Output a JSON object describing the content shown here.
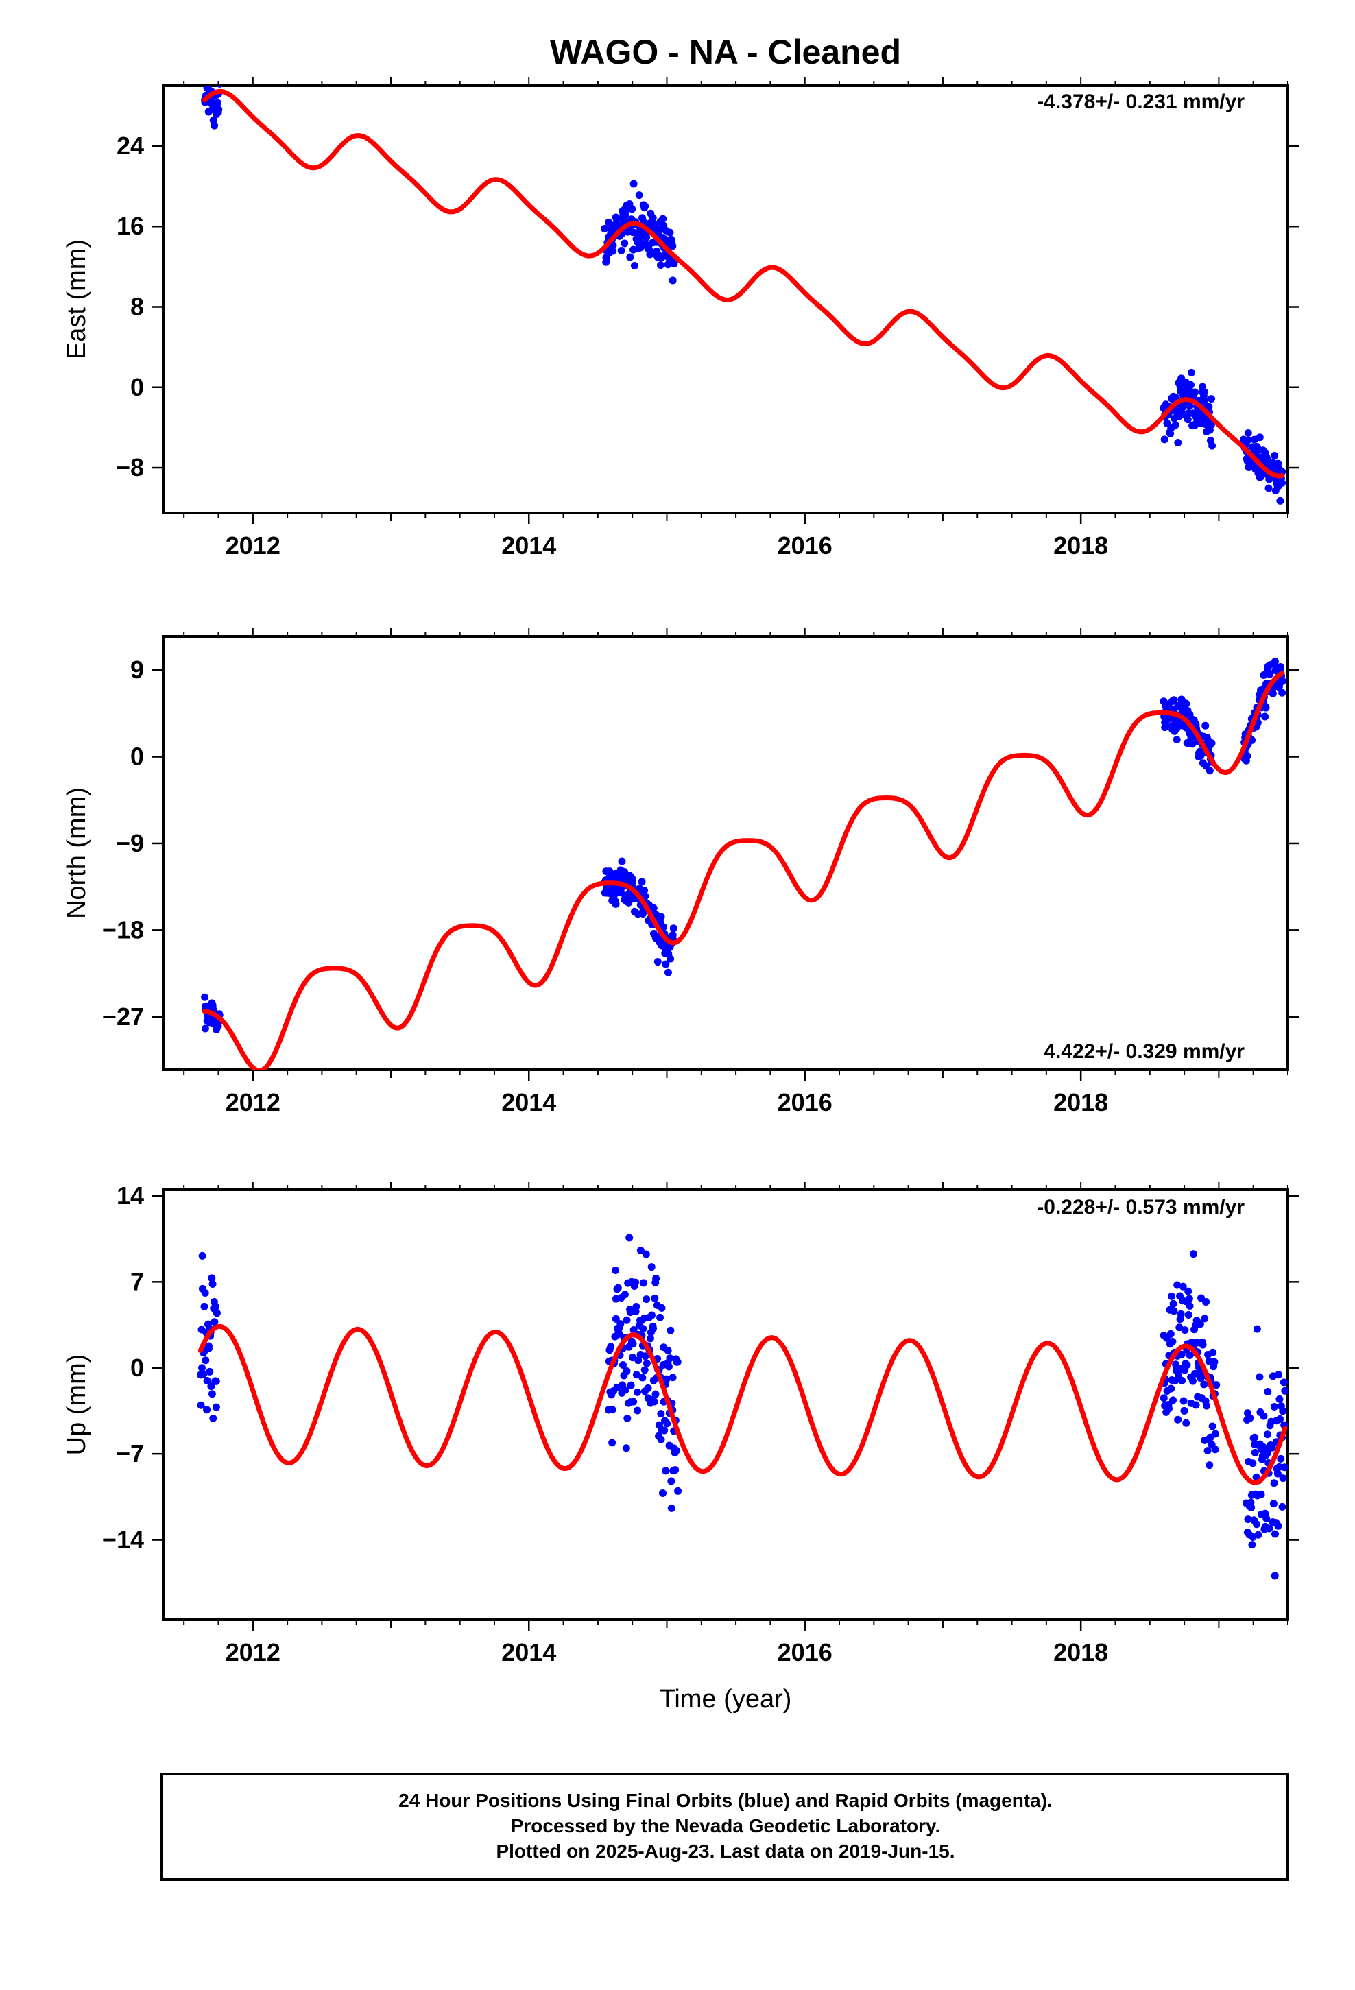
{
  "title": "WAGO  - NA - Cleaned",
  "x_axis_label": "Time (year)",
  "colors": {
    "data_points": "#0000ff",
    "model_curve": "#ff0000",
    "frame": "#000000"
  },
  "chart_data": [
    {
      "type": "scatter",
      "panel": "east",
      "ylabel": "East (mm)",
      "rate_annotation": "-4.378+/- 0.231 mm/yr",
      "xlim": [
        2011.35,
        2019.5
      ],
      "ylim": [
        -12.5,
        30.0
      ],
      "x_ticks": [
        2012,
        2014,
        2016,
        2018
      ],
      "y_ticks": [
        24,
        16,
        8,
        0,
        -8
      ],
      "segments": [
        {
          "start": 2011.65,
          "end": 2011.76,
          "jitter": 1.3
        },
        {
          "start": 2014.55,
          "end": 2015.05,
          "jitter": 1.2
        },
        {
          "start": 2018.6,
          "end": 2018.95,
          "jitter": 1.2
        },
        {
          "start": 2019.18,
          "end": 2019.46,
          "jitter": 0.9
        }
      ],
      "model": {
        "intercept": 27.6,
        "t0": 2011.65,
        "rate": -4.378,
        "annual_amp": 2.2,
        "annual_phase": 2011.6,
        "semiannual_amp": 0.5,
        "semiannual_phase": 2011.6
      }
    },
    {
      "type": "scatter",
      "panel": "north",
      "ylabel": "North (mm)",
      "rate_annotation": "4.422+/- 0.329 mm/yr",
      "xlim": [
        2011.35,
        2019.5
      ],
      "ylim": [
        -32.5,
        12.5
      ],
      "x_ticks": [
        2012,
        2014,
        2016,
        2018
      ],
      "y_ticks": [
        9,
        0,
        -9,
        -18,
        -27
      ],
      "segments": [
        {
          "start": 2011.65,
          "end": 2011.76,
          "jitter": 0.9
        },
        {
          "start": 2014.55,
          "end": 2015.05,
          "jitter": 1.0
        },
        {
          "start": 2018.6,
          "end": 2018.95,
          "jitter": 1.0
        },
        {
          "start": 2019.18,
          "end": 2019.46,
          "jitter": 1.1
        }
      ],
      "model": {
        "intercept": -29.3,
        "t0": 2011.65,
        "rate": 4.422,
        "annual_amp": 4.2,
        "annual_phase": 2012.3,
        "semiannual_amp": 0.9,
        "semiannual_phase": 2011.7
      }
    },
    {
      "type": "scatter",
      "panel": "up",
      "ylabel": "Up (mm)",
      "rate_annotation": "-0.228+/- 0.573 mm/yr",
      "xlim": [
        2011.35,
        2019.5
      ],
      "ylim": [
        -20.5,
        14.5
      ],
      "x_ticks": [
        2012,
        2014,
        2016,
        2018
      ],
      "y_ticks": [
        14,
        7,
        0,
        -7,
        -14
      ],
      "segments": [
        {
          "start": 2011.62,
          "end": 2011.74,
          "jitter": 3.5
        },
        {
          "start": 2014.58,
          "end": 2015.08,
          "jitter": 3.8
        },
        {
          "start": 2018.6,
          "end": 2018.98,
          "jitter": 3.0
        },
        {
          "start": 2019.2,
          "end": 2019.48,
          "jitter": 3.6
        }
      ],
      "model": {
        "intercept": -2.1,
        "t0": 2011.65,
        "rate": -0.228,
        "annual_amp": 5.5,
        "annual_phase": 2011.51,
        "semiannual_amp": 0.0,
        "semiannual_phase": 2011.5
      }
    }
  ],
  "footer": {
    "line1": "24 Hour Positions Using Final Orbits (blue) and Rapid Orbits (magenta).",
    "line2": "Processed by the Nevada Geodetic Laboratory.",
    "line3": "Plotted on 2025-Aug-23. Last data on 2019-Jun-15."
  }
}
